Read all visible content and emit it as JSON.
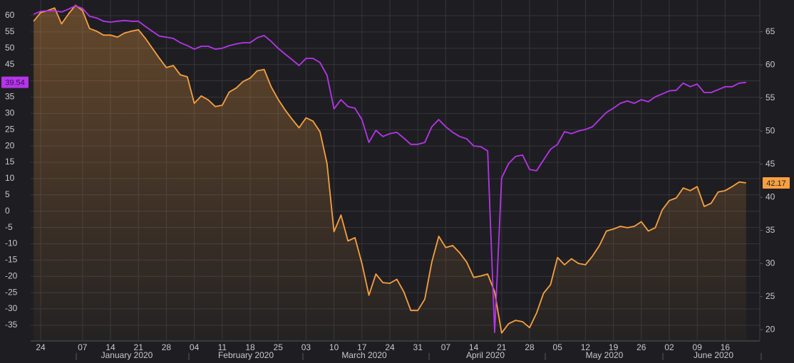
{
  "chart_data": {
    "type": "line",
    "categories": [
      null,
      "24",
      null,
      null,
      null,
      null,
      null,
      "07",
      null,
      null,
      null,
      "14",
      null,
      null,
      null,
      "21",
      null,
      null,
      null,
      "28",
      null,
      null,
      null,
      "04",
      null,
      null,
      null,
      "11",
      null,
      null,
      null,
      "18",
      null,
      null,
      null,
      "25",
      null,
      null,
      null,
      "03",
      null,
      null,
      null,
      "10",
      null,
      null,
      null,
      "17",
      null,
      null,
      null,
      "24",
      null,
      null,
      null,
      "31",
      null,
      null,
      null,
      "07",
      null,
      null,
      null,
      "14",
      null,
      null,
      null,
      "21",
      null,
      null,
      null,
      "28",
      null,
      null,
      null,
      "05",
      null,
      null,
      null,
      "12",
      null,
      null,
      null,
      "19",
      null,
      null,
      null,
      "26",
      null,
      null,
      null,
      "02",
      null,
      null,
      null,
      "09",
      null,
      null,
      null,
      "16",
      null,
      null,
      null
    ],
    "x_group_labels": [
      "January 2020",
      "February 2020",
      "March 2020",
      "April 2020",
      "May 2020",
      "June 2020"
    ],
    "ylim": [
      -39.6,
      64.8
    ],
    "yticks": [
      -35,
      -30,
      -25,
      -20,
      -15,
      -10,
      -5,
      0,
      5,
      10,
      15,
      20,
      25,
      30,
      35,
      40,
      45,
      50,
      55,
      60
    ],
    "y2lim": [
      18.4,
      69.8
    ],
    "y2ticks": [
      20,
      25,
      30,
      35,
      40,
      45,
      50,
      55,
      60,
      65
    ],
    "grid": true,
    "series": [
      {
        "color": "#b535e8",
        "axis": "y",
        "values": [
          60.4,
          61.3,
          61.5,
          61.5,
          61.1,
          62,
          63,
          62.2,
          59.8,
          59.3,
          58.3,
          58,
          58.3,
          58.5,
          58.3,
          58.3,
          56.7,
          55.2,
          53.7,
          53.4,
          53,
          51.7,
          50.8,
          49.7,
          50.6,
          50.6,
          49.7,
          50,
          50.8,
          51.3,
          51.7,
          51.7,
          53.2,
          53.9,
          52.1,
          50,
          48.2,
          46.5,
          44.7,
          46.9,
          46.9,
          45.6,
          41.7,
          31.4,
          34.2,
          32.1,
          31.6,
          28.1,
          21.1,
          24.8,
          22.9,
          23.8,
          24.2,
          22.4,
          20.5,
          20.5,
          21.1,
          25.9,
          28.1,
          25.9,
          24.2,
          22.9,
          22.2,
          20,
          19.8,
          18.5,
          -37.2,
          10.2,
          14.6,
          16.8,
          17.2,
          12.8,
          12.4,
          15.7,
          19,
          20.5,
          24.4,
          23.8,
          24.6,
          25.1,
          25.9,
          28.1,
          30.3,
          31.6,
          33.1,
          33.8,
          33.1,
          34.2,
          33.6,
          35.1,
          36,
          36.9,
          37.1,
          39.3,
          38.2,
          39,
          36.4,
          36.4,
          37.3,
          38.2,
          38.2,
          39.3,
          39.54
        ],
        "value_labels": [
          null,
          null,
          null,
          null,
          null,
          null,
          null,
          null,
          null,
          null,
          null,
          null,
          null,
          null,
          null,
          null,
          null,
          null,
          null,
          null,
          null,
          null,
          null,
          null,
          null,
          null,
          null,
          null,
          null,
          null,
          null,
          null,
          null,
          null,
          null,
          null,
          null,
          null,
          null,
          null,
          null,
          null,
          null,
          null,
          null,
          null,
          null,
          null,
          null,
          null,
          null,
          null,
          null,
          null,
          null,
          null,
          null,
          null,
          null,
          null,
          null,
          null,
          null,
          null,
          null,
          null,
          null,
          null,
          null,
          null,
          null,
          null,
          null,
          null,
          null,
          null,
          null,
          null,
          null,
          null,
          null,
          null,
          null,
          null,
          null,
          null,
          null,
          null,
          null,
          null,
          null,
          null,
          null,
          null,
          null,
          null,
          null,
          null,
          null,
          null,
          null,
          null,
          "39.54"
        ]
      },
      {
        "color": "#f7a040",
        "axis": "y2",
        "fill": "area",
        "values": [
          66.6,
          67.9,
          68.2,
          68.6,
          66.2,
          67.7,
          69,
          68.2,
          65.5,
          65.1,
          64.5,
          64.5,
          64.2,
          64.8,
          65.1,
          65.3,
          64,
          62.5,
          61,
          59.6,
          59.9,
          58.5,
          58.2,
          54.2,
          55.3,
          54.7,
          53.7,
          53.9,
          55.9,
          56.5,
          57.5,
          58,
          59.1,
          59.3,
          56.7,
          54.8,
          53.2,
          51.8,
          50.5,
          52,
          51.5,
          49.9,
          45.1,
          34.8,
          37.3,
          33.4,
          33.9,
          30,
          25.2,
          28.4,
          27.1,
          27,
          27.6,
          25.7,
          22.9,
          22.9,
          24.6,
          30.2,
          34.1,
          32.4,
          32.7,
          31.6,
          30.2,
          27.9,
          28.1,
          28.4,
          25.7,
          19.5,
          20.9,
          21.4,
          21.2,
          20.3,
          22.5,
          25.5,
          26.8,
          30.9,
          29.8,
          30.7,
          30,
          29.8,
          31.1,
          32.7,
          34.9,
          35.2,
          35.6,
          35.4,
          35.6,
          36.3,
          34.9,
          35.4,
          38.1,
          39.5,
          39.9,
          41.4,
          41,
          41.6,
          38.6,
          39.1,
          40.8,
          41,
          41.6,
          42.3,
          42.17
        ],
        "value_labels": [
          null,
          null,
          null,
          null,
          null,
          null,
          null,
          null,
          null,
          null,
          null,
          null,
          null,
          null,
          null,
          null,
          null,
          null,
          null,
          null,
          null,
          null,
          null,
          null,
          null,
          null,
          null,
          null,
          null,
          null,
          null,
          null,
          null,
          null,
          null,
          null,
          null,
          null,
          null,
          null,
          null,
          null,
          null,
          null,
          null,
          null,
          null,
          null,
          null,
          null,
          null,
          null,
          null,
          null,
          null,
          null,
          null,
          null,
          null,
          null,
          null,
          null,
          null,
          null,
          null,
          null,
          null,
          null,
          null,
          null,
          null,
          null,
          null,
          null,
          null,
          null,
          null,
          null,
          null,
          null,
          null,
          null,
          null,
          null,
          null,
          null,
          null,
          null,
          null,
          null,
          null,
          null,
          null,
          null,
          null,
          null,
          null,
          null,
          null,
          null,
          null,
          null,
          "42.17"
        ]
      }
    ]
  }
}
